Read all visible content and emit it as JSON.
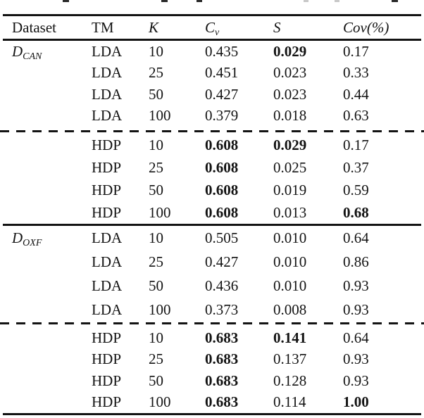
{
  "caption": {
    "description": "bottom edge of a cropped caption text line (only letter descenders visible)",
    "marks": [
      {
        "style": "left:89px;width:9px;background:#2b2b2b"
      },
      {
        "style": "left:229px;width:9px;background:#2b2b2b"
      },
      {
        "style": "left:279px;width:8px;background:#2b2b2b"
      },
      {
        "style": "left:431px;width:7px;background:#c9c9c9"
      },
      {
        "style": "left:475px;width:7px;background:#c9c9c9"
      },
      {
        "style": "left:556px;width:9px;background:#2b2b2b"
      }
    ]
  },
  "table": {
    "headers": {
      "dataset": "Dataset",
      "tm": "TM",
      "k": "K",
      "cv_main": "C",
      "cv_sub": "v",
      "s": "S",
      "cov": "Cov(%)"
    },
    "rows": [
      {
        "dataset_main": "D",
        "dataset_sub": "CAN",
        "tm": "LDA",
        "k": "10",
        "cv": "0.435",
        "s": "0.029",
        "cov": "0.17",
        "bold": [
          "s"
        ]
      },
      {
        "tm": "LDA",
        "k": "25",
        "cv": "0.451",
        "s": "0.023",
        "cov": "0.33",
        "bold": []
      },
      {
        "tm": "LDA",
        "k": "50",
        "cv": "0.427",
        "s": "0.023",
        "cov": "0.44",
        "bold": []
      },
      {
        "tm": "LDA",
        "k": "100",
        "cv": "0.379",
        "s": "0.018",
        "cov": "0.63",
        "bold": []
      },
      {
        "tm": "HDP",
        "k": "10",
        "cv": "0.608",
        "s": "0.029",
        "cov": "0.17",
        "bold": [
          "cv",
          "s"
        ]
      },
      {
        "tm": "HDP",
        "k": "25",
        "cv": "0.608",
        "s": "0.025",
        "cov": "0.37",
        "bold": [
          "cv"
        ]
      },
      {
        "tm": "HDP",
        "k": "50",
        "cv": "0.608",
        "s": "0.019",
        "cov": "0.59",
        "bold": [
          "cv"
        ]
      },
      {
        "tm": "HDP",
        "k": "100",
        "cv": "0.608",
        "s": "0.013",
        "cov": "0.68",
        "bold": [
          "cv",
          "cov"
        ]
      },
      {
        "dataset_main": "D",
        "dataset_sub": "OXF",
        "tm": "LDA",
        "k": "10",
        "cv": "0.505",
        "s": "0.010",
        "cov": "0.64",
        "bold": []
      },
      {
        "tm": "LDA",
        "k": "25",
        "cv": "0.427",
        "s": "0.010",
        "cov": "0.86",
        "bold": []
      },
      {
        "tm": "LDA",
        "k": "50",
        "cv": "0.436",
        "s": "0.010",
        "cov": "0.93",
        "bold": []
      },
      {
        "tm": "LDA",
        "k": "100",
        "cv": "0.373",
        "s": "0.008",
        "cov": "0.93",
        "bold": []
      },
      {
        "tm": "HDP",
        "k": "10",
        "cv": "0.683",
        "s": "0.141",
        "cov": "0.64",
        "bold": [
          "cv",
          "s"
        ]
      },
      {
        "tm": "HDP",
        "k": "25",
        "cv": "0.683",
        "s": "0.137",
        "cov": "0.93",
        "bold": [
          "cv"
        ]
      },
      {
        "tm": "HDP",
        "k": "50",
        "cv": "0.683",
        "s": "0.128",
        "cov": "0.93",
        "bold": [
          "cv"
        ]
      },
      {
        "tm": "HDP",
        "k": "100",
        "cv": "0.683",
        "s": "0.114",
        "cov": "1.00",
        "bold": [
          "cv",
          "cov"
        ]
      }
    ]
  }
}
